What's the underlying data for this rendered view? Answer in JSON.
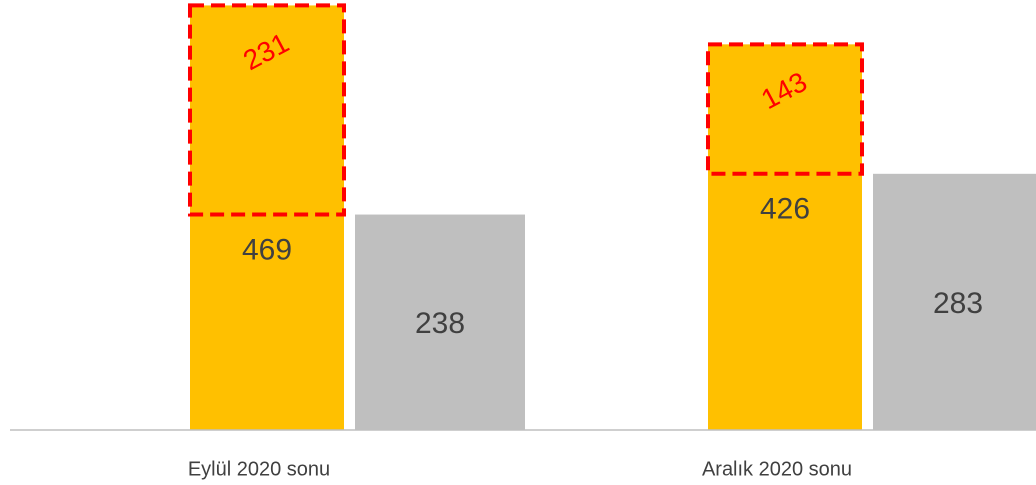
{
  "chart_data": {
    "type": "bar",
    "categories": [
      "Eylül 2020 sonu",
      "Aralık 2020 sonu"
    ],
    "series": [
      {
        "color": "#FFC000",
        "values": [
          469,
          426
        ]
      },
      {
        "color": "#BFBFBF",
        "values": [
          238,
          283
        ]
      }
    ],
    "differences": {
      "color": "#FF0000",
      "values": [
        231,
        143
      ]
    },
    "ylim": [
      0,
      475
    ]
  }
}
